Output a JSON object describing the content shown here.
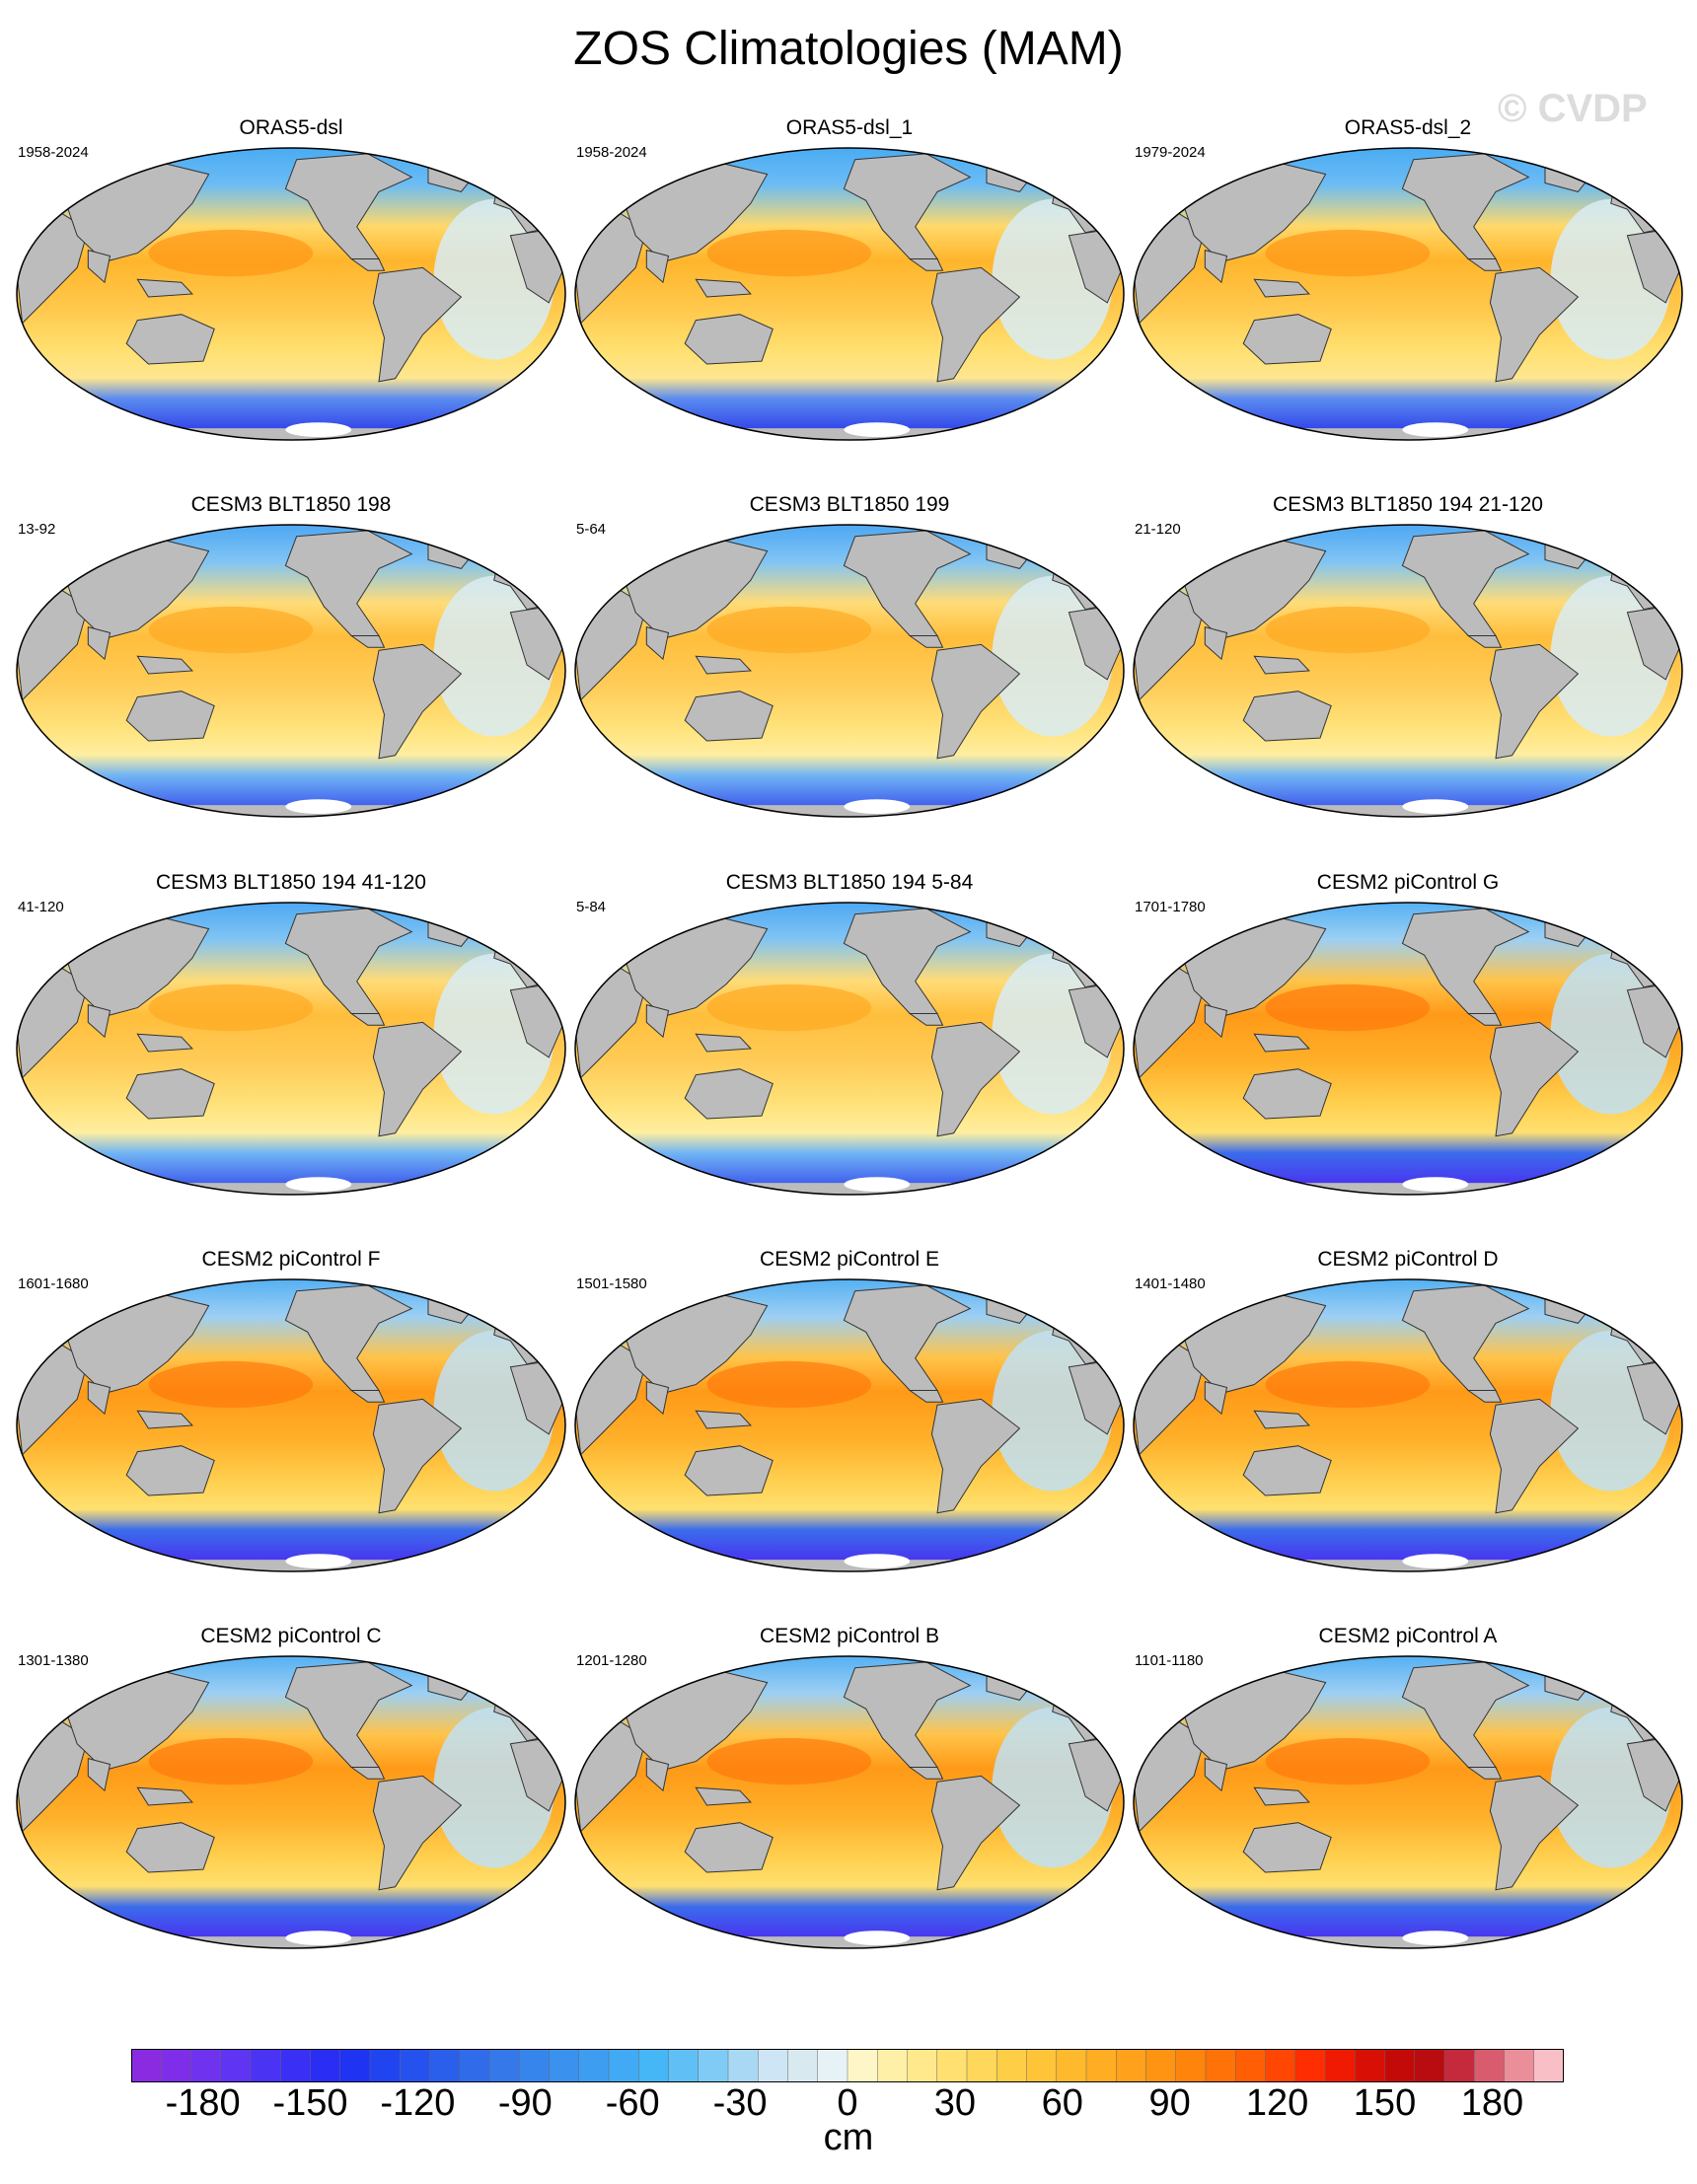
{
  "title": "ZOS Climatologies (MAM)",
  "watermark": "© CVDP",
  "panels": [
    {
      "name": "ORAS5-dsl",
      "period": "1958-2024",
      "style": "reanalysis"
    },
    {
      "name": "ORAS5-dsl_1",
      "period": "1958-2024",
      "style": "reanalysis"
    },
    {
      "name": "ORAS5-dsl_2",
      "period": "1979-2024",
      "style": "reanalysis"
    },
    {
      "name": "CESM3 BLT1850 198",
      "period": "13-92",
      "style": "cesm3"
    },
    {
      "name": "CESM3 BLT1850 199",
      "period": "5-64",
      "style": "cesm3"
    },
    {
      "name": "CESM3 BLT1850 194 21-120",
      "period": "21-120",
      "style": "cesm3"
    },
    {
      "name": "CESM3 BLT1850 194 41-120",
      "period": "41-120",
      "style": "cesm3"
    },
    {
      "name": "CESM3 BLT1850 194 5-84",
      "period": "5-84",
      "style": "cesm3"
    },
    {
      "name": "CESM2 piControl G",
      "period": "1701-1780",
      "style": "cesm2"
    },
    {
      "name": "CESM2 piControl F",
      "period": "1601-1680",
      "style": "cesm2"
    },
    {
      "name": "CESM2 piControl E",
      "period": "1501-1580",
      "style": "cesm2"
    },
    {
      "name": "CESM2 piControl D",
      "period": "1401-1480",
      "style": "cesm2"
    },
    {
      "name": "CESM2 piControl C",
      "period": "1301-1380",
      "style": "cesm2"
    },
    {
      "name": "CESM2 piControl B",
      "period": "1201-1280",
      "style": "cesm2"
    },
    {
      "name": "CESM2 piControl A",
      "period": "1101-1180",
      "style": "cesm2"
    }
  ],
  "colorbar": {
    "units": "cm",
    "min": -200,
    "max": 200,
    "step": 10,
    "tick_labels": [
      "-180",
      "-150",
      "-120",
      "-90",
      "-60",
      "-30",
      "0",
      "30",
      "60",
      "90",
      "120",
      "150",
      "180"
    ],
    "tick_values": [
      -180,
      -150,
      -120,
      -90,
      -60,
      -30,
      0,
      30,
      60,
      90,
      120,
      150,
      180
    ],
    "colors": [
      "#8a2be2",
      "#7e2ee8",
      "#6f32ee",
      "#5f34f2",
      "#4b33f4",
      "#3a30f5",
      "#2a2ef5",
      "#1f33f3",
      "#1f44f0",
      "#2552ee",
      "#2a5fec",
      "#306bea",
      "#3478ea",
      "#3685ec",
      "#3a91ee",
      "#3d9ef1",
      "#40aaf4",
      "#45b6f6",
      "#60c0f6",
      "#80cbf6",
      "#fff6c8",
      "#fff0a8",
      "#ffe98c",
      "#ffe070",
      "#ffd75a",
      "#ffce47",
      "#ffc438",
      "#ffb92c",
      "#ffad22",
      "#ffa11a",
      "#ff9312",
      "#ff840c",
      "#ff7208",
      "#ff5e05",
      "#ff4703",
      "#ff2d02",
      "#f01a02",
      "#d80f04",
      "#c40a08",
      "#b80c10"
    ],
    "colors_light_tail": [
      "#a8d8f4",
      "#cde5f4",
      "#d9e9f0",
      "#e7f2f6"
    ],
    "colors_pink_tail": [
      "#c42a3c",
      "#d85c6e",
      "#ea8e9a",
      "#f8c0c6"
    ]
  },
  "legend_colors": {
    "land": "#bcbcbc",
    "ice_shelf": "#ffffff",
    "coast": "#333333"
  }
}
